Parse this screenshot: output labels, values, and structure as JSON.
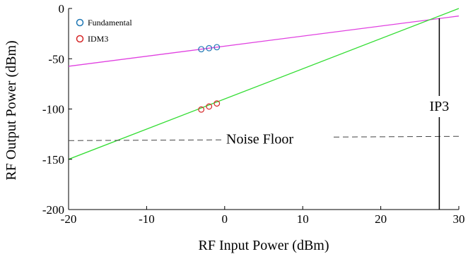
{
  "chart_data": {
    "type": "line",
    "xlabel": "RF Input Power (dBm)",
    "ylabel": "RF Output Power (dBm)",
    "xlim": [
      -20,
      30
    ],
    "ylim": [
      -200,
      0
    ],
    "xticks": [
      "-20",
      "-10",
      "0",
      "10",
      "20",
      "30"
    ],
    "yticks": [
      "0",
      "-50",
      "-100",
      "-150",
      "-200"
    ],
    "grid": false,
    "legend_position": "top-left",
    "legend": [
      {
        "label": "Fundamental",
        "marker_color": "#1f77b4"
      },
      {
        "label": "IDM3",
        "marker_color": "#d62728"
      }
    ],
    "series": [
      {
        "name": "Fundamental",
        "color": "#e040e0",
        "x": [
          -20,
          30
        ],
        "y": [
          -57.5,
          -7.5
        ]
      },
      {
        "name": "IDM3",
        "color": "#33dd33",
        "x": [
          -20,
          30
        ],
        "y": [
          -150,
          0
        ]
      }
    ],
    "markers": [
      {
        "series": "Fundamental",
        "color": "#1f77b4",
        "x": [
          -3,
          -2,
          -1
        ],
        "y": [
          -40.5,
          -39.5,
          -38.5
        ]
      },
      {
        "series": "IDM3",
        "color": "#d62728",
        "x": [
          -3,
          -2,
          -1
        ],
        "y": [
          -100.5,
          -97.5,
          -94.5
        ]
      }
    ],
    "annotations": {
      "noise_floor": {
        "label": "Noise Floor",
        "y": -130
      },
      "ip3": {
        "label": "IP3",
        "x": 27.5
      }
    }
  }
}
